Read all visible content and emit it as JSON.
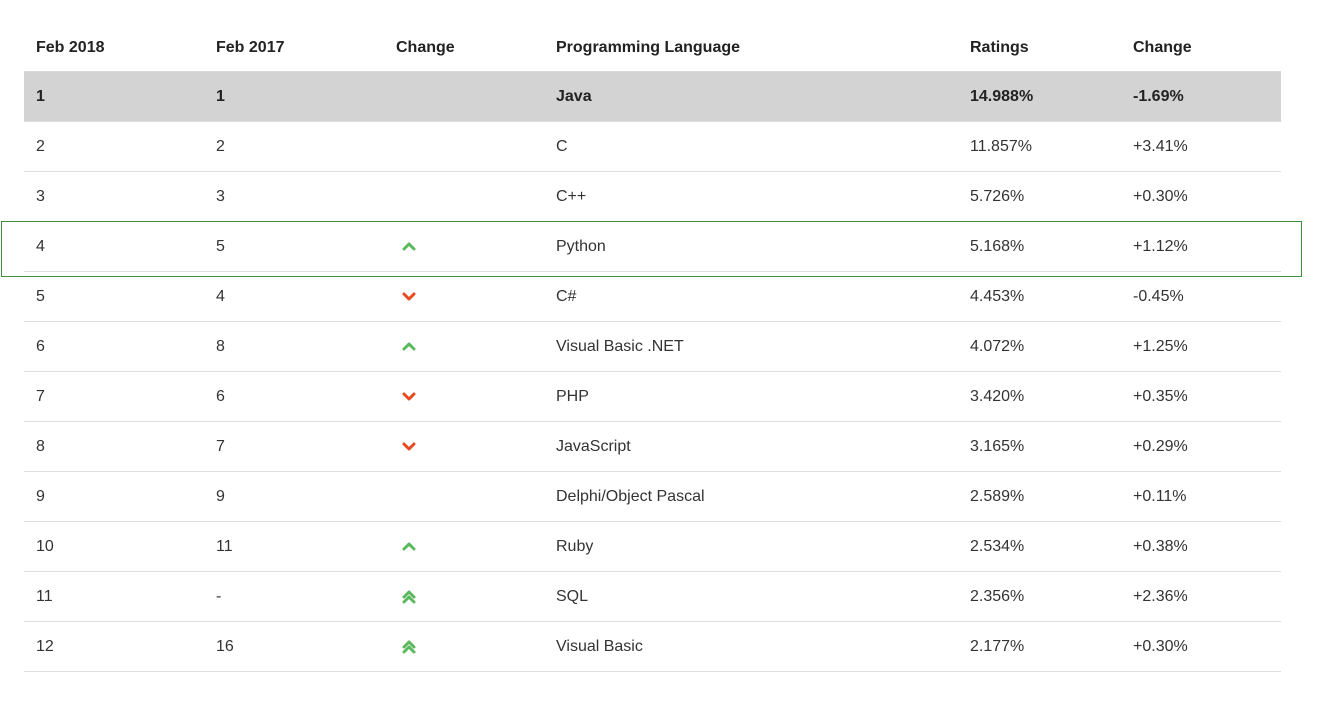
{
  "headers": [
    "Feb 2018",
    "Feb 2017",
    "Change",
    "Programming Language",
    "Ratings",
    "Change"
  ],
  "colors": {
    "up": "#5cb85c",
    "down": "#e8491d",
    "highlight_border": "#3f8f3f",
    "top_row_bg": "#d3d3d3"
  },
  "rows": [
    {
      "rank_2018": "1",
      "rank_2017": "1",
      "trend": "none",
      "language": "Java",
      "rating": "14.988%",
      "change": "-1.69%"
    },
    {
      "rank_2018": "2",
      "rank_2017": "2",
      "trend": "none",
      "language": "C",
      "rating": "11.857%",
      "change": "+3.41%"
    },
    {
      "rank_2018": "3",
      "rank_2017": "3",
      "trend": "none",
      "language": "C++",
      "rating": "5.726%",
      "change": "+0.30%"
    },
    {
      "rank_2018": "4",
      "rank_2017": "5",
      "trend": "up",
      "language": "Python",
      "rating": "5.168%",
      "change": "+1.12%"
    },
    {
      "rank_2018": "5",
      "rank_2017": "4",
      "trend": "down",
      "language": "C#",
      "rating": "4.453%",
      "change": "-0.45%"
    },
    {
      "rank_2018": "6",
      "rank_2017": "8",
      "trend": "up",
      "language": "Visual Basic .NET",
      "rating": "4.072%",
      "change": "+1.25%"
    },
    {
      "rank_2018": "7",
      "rank_2017": "6",
      "trend": "down",
      "language": "PHP",
      "rating": "3.420%",
      "change": "+0.35%"
    },
    {
      "rank_2018": "8",
      "rank_2017": "7",
      "trend": "down",
      "language": "JavaScript",
      "rating": "3.165%",
      "change": "+0.29%"
    },
    {
      "rank_2018": "9",
      "rank_2017": "9",
      "trend": "none",
      "language": "Delphi/Object Pascal",
      "rating": "2.589%",
      "change": "+0.11%"
    },
    {
      "rank_2018": "10",
      "rank_2017": "11",
      "trend": "up",
      "language": "Ruby",
      "rating": "2.534%",
      "change": "+0.38%"
    },
    {
      "rank_2018": "11",
      "rank_2017": "-",
      "trend": "double-up",
      "language": "SQL",
      "rating": "2.356%",
      "change": "+2.36%"
    },
    {
      "rank_2018": "12",
      "rank_2017": "16",
      "trend": "double-up",
      "language": "Visual Basic",
      "rating": "2.177%",
      "change": "+0.30%"
    }
  ]
}
